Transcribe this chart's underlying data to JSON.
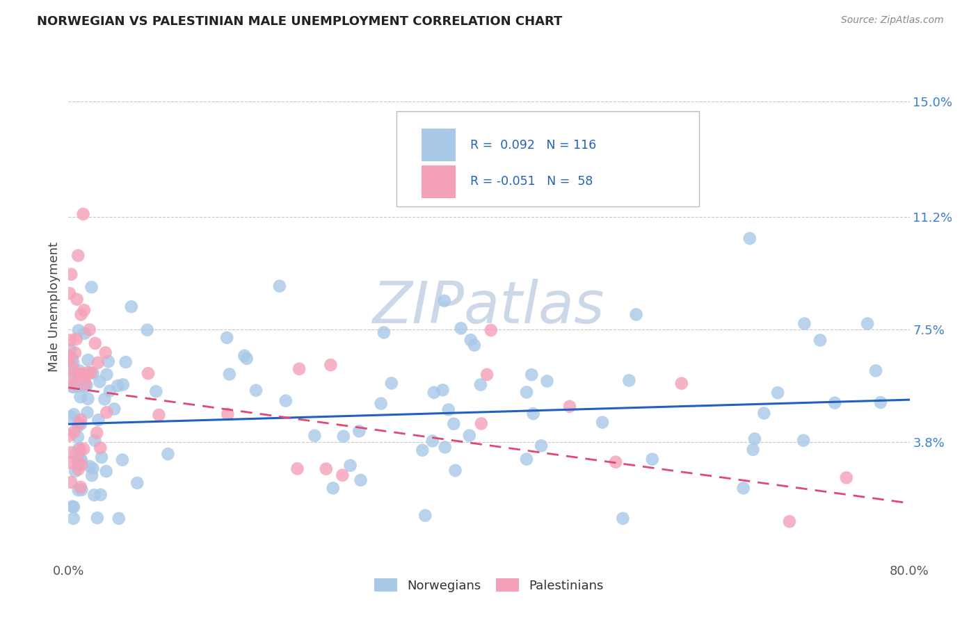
{
  "title": "NORWEGIAN VS PALESTINIAN MALE UNEMPLOYMENT CORRELATION CHART",
  "source": "Source: ZipAtlas.com",
  "ylabel": "Male Unemployment",
  "x_min": 0.0,
  "x_max": 0.8,
  "y_min": 0.0,
  "y_max": 0.165,
  "y_ticks": [
    0.038,
    0.075,
    0.112,
    0.15
  ],
  "y_tick_labels": [
    "3.8%",
    "7.5%",
    "11.2%",
    "15.0%"
  ],
  "r_norwegian": 0.092,
  "n_norwegian": 116,
  "r_palestinian": -0.051,
  "n_palestinian": 58,
  "norwegian_color": "#a8c8e8",
  "palestinian_color": "#f4a0b8",
  "norwegian_line_color": "#2060c0",
  "palestinian_line_color": "#e04878",
  "background_color": "#ffffff",
  "watermark_color": "#ccd8e8",
  "grid_color": "#c8c8c8",
  "title_color": "#222222",
  "axis_label_color": "#444444",
  "right_tick_color": "#3a7fd4",
  "legend_text_color": "#2060c0",
  "source_color": "#888888",
  "nor_line_start_y": 0.044,
  "nor_line_end_y": 0.052,
  "pal_line_start_y": 0.056,
  "pal_line_end_y": 0.018
}
